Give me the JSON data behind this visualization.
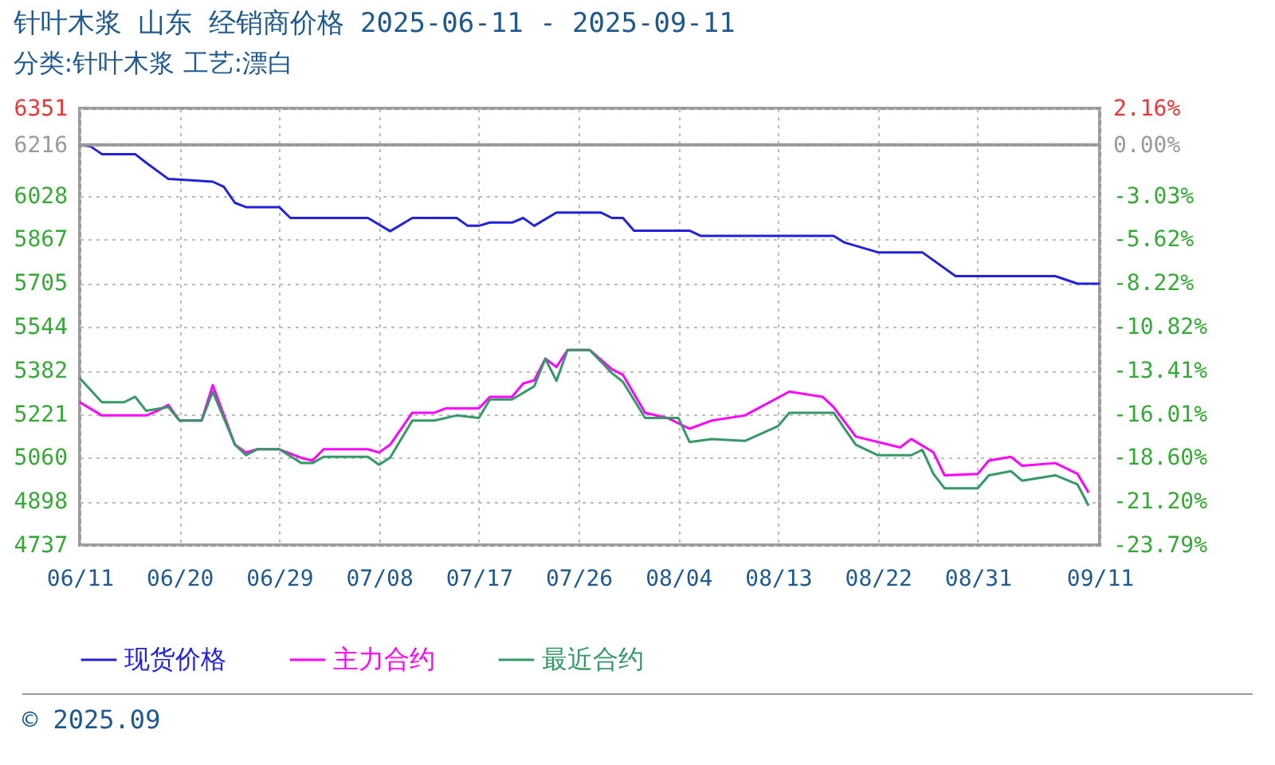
{
  "chart_data": {
    "type": "line",
    "title": "针叶木浆 山东 经销商价格 2025-06-11 - 2025-09-11",
    "subtitle": "分类:针叶木浆 工艺:漂白",
    "xlim": [
      "2025-06-11",
      "2025-09-11"
    ],
    "xticks": [
      {
        "value": "2025-06-11",
        "label": "06/11"
      },
      {
        "value": "2025-06-20",
        "label": "06/20"
      },
      {
        "value": "2025-06-29",
        "label": "06/29"
      },
      {
        "value": "2025-07-08",
        "label": "07/08"
      },
      {
        "value": "2025-07-17",
        "label": "07/17"
      },
      {
        "value": "2025-07-26",
        "label": "07/26"
      },
      {
        "value": "2025-08-04",
        "label": "08/04"
      },
      {
        "value": "2025-08-13",
        "label": "08/13"
      },
      {
        "value": "2025-08-22",
        "label": "08/22"
      },
      {
        "value": "2025-08-31",
        "label": "08/31"
      },
      {
        "value": "2025-09-11",
        "label": "09/11"
      }
    ],
    "ylim": [
      4737,
      6351
    ],
    "yticks": [
      4737,
      4898,
      5060,
      5221,
      5382,
      5544,
      5705,
      5867,
      6028,
      6216,
      6351
    ],
    "y2lim": [
      -23.79,
      2.16
    ],
    "y2ticks": [
      {
        "value": -23.79,
        "label": "-23.79%"
      },
      {
        "value": -21.2,
        "label": "-21.20%"
      },
      {
        "value": -18.6,
        "label": "-18.60%"
      },
      {
        "value": -16.01,
        "label": "-16.01%"
      },
      {
        "value": -13.41,
        "label": "-13.41%"
      },
      {
        "value": -10.82,
        "label": "-10.82%"
      },
      {
        "value": -8.22,
        "label": "-8.22%"
      },
      {
        "value": -5.62,
        "label": "-5.62%"
      },
      {
        "value": -3.03,
        "label": "-3.03%"
      },
      {
        "value": 0,
        "label": "0.00%"
      },
      {
        "value": 2.16,
        "label": "2.16%"
      }
    ],
    "ref_lines": [
      {
        "axis": "y",
        "value": 6216,
        "color": "#999999"
      }
    ],
    "grid": true,
    "legend": "bottom",
    "annotations": [
      "© 2025.09"
    ],
    "series": [
      {
        "name": "现货价格",
        "color": "#2222dd",
        "x": [
          "2025-06-11",
          "2025-06-12",
          "2025-06-13",
          "2025-06-16",
          "2025-06-17",
          "2025-06-19",
          "2025-06-23",
          "2025-06-24",
          "2025-06-25",
          "2025-06-26",
          "2025-06-29",
          "2025-06-30",
          "2025-07-07",
          "2025-07-09",
          "2025-07-11",
          "2025-07-15",
          "2025-07-16",
          "2025-07-17",
          "2025-07-18",
          "2025-07-20",
          "2025-07-21",
          "2025-07-22",
          "2025-07-24",
          "2025-07-28",
          "2025-07-29",
          "2025-07-30",
          "2025-07-31",
          "2025-08-05",
          "2025-08-06",
          "2025-08-18",
          "2025-08-19",
          "2025-08-22",
          "2025-08-26",
          "2025-08-29",
          "2025-09-07",
          "2025-09-09",
          "2025-09-11"
        ],
        "values": [
          6216,
          6210,
          6182,
          6182,
          6150,
          6090,
          6080,
          6061,
          6002,
          5986,
          5986,
          5946,
          5946,
          5897,
          5946,
          5946,
          5917,
          5917,
          5929,
          5929,
          5946,
          5917,
          5966,
          5966,
          5946,
          5946,
          5899,
          5899,
          5880,
          5880,
          5855,
          5819,
          5819,
          5731,
          5731,
          5703,
          5703
        ]
      },
      {
        "name": "主力合约",
        "color": "#ff00ff",
        "x": [
          "2025-06-11",
          "2025-06-13",
          "2025-06-17",
          "2025-06-18",
          "2025-06-19",
          "2025-06-20",
          "2025-06-22",
          "2025-06-23",
          "2025-06-25",
          "2025-06-26",
          "2025-06-27",
          "2025-06-29",
          "2025-07-01",
          "2025-07-02",
          "2025-07-03",
          "2025-07-07",
          "2025-07-08",
          "2025-07-09",
          "2025-07-11",
          "2025-07-13",
          "2025-07-14",
          "2025-07-17",
          "2025-07-18",
          "2025-07-20",
          "2025-07-21",
          "2025-07-22",
          "2025-07-23",
          "2025-07-24",
          "2025-07-25",
          "2025-07-27",
          "2025-07-29",
          "2025-07-30",
          "2025-08-01",
          "2025-08-03",
          "2025-08-05",
          "2025-08-07",
          "2025-08-10",
          "2025-08-14",
          "2025-08-17",
          "2025-08-18",
          "2025-08-20",
          "2025-08-24",
          "2025-08-25",
          "2025-08-27",
          "2025-08-28",
          "2025-08-31",
          "2025-09-01",
          "2025-09-03",
          "2025-09-04",
          "2025-09-07",
          "2025-09-09",
          "2025-09-10"
        ],
        "values": [
          5265,
          5216,
          5216,
          5233,
          5255,
          5197,
          5197,
          5328,
          5108,
          5079,
          5091,
          5091,
          5059,
          5049,
          5091,
          5091,
          5079,
          5108,
          5226,
          5226,
          5242,
          5242,
          5285,
          5285,
          5334,
          5346,
          5426,
          5395,
          5458,
          5458,
          5387,
          5366,
          5226,
          5207,
          5167,
          5197,
          5216,
          5304,
          5285,
          5247,
          5138,
          5098,
          5129,
          5080,
          4995,
          5000,
          5049,
          5063,
          5030,
          5040,
          5000,
          4931
        ]
      },
      {
        "name": "最近合约",
        "color": "#339966",
        "x": [
          "2025-06-11",
          "2025-06-13",
          "2025-06-15",
          "2025-06-16",
          "2025-06-17",
          "2025-06-19",
          "2025-06-20",
          "2025-06-22",
          "2025-06-23",
          "2025-06-25",
          "2025-06-26",
          "2025-06-27",
          "2025-06-29",
          "2025-07-01",
          "2025-07-02",
          "2025-07-03",
          "2025-07-07",
          "2025-07-08",
          "2025-07-09",
          "2025-07-11",
          "2025-07-13",
          "2025-07-15",
          "2025-07-17",
          "2025-07-18",
          "2025-07-20",
          "2025-07-22",
          "2025-07-23",
          "2025-07-24",
          "2025-07-25",
          "2025-07-27",
          "2025-07-29",
          "2025-07-30",
          "2025-08-01",
          "2025-08-04",
          "2025-08-05",
          "2025-08-07",
          "2025-08-10",
          "2025-08-13",
          "2025-08-14",
          "2025-08-18",
          "2025-08-20",
          "2025-08-22",
          "2025-08-25",
          "2025-08-26",
          "2025-08-27",
          "2025-08-28",
          "2025-08-31",
          "2025-09-01",
          "2025-09-03",
          "2025-09-04",
          "2025-09-07",
          "2025-09-09",
          "2025-09-10"
        ],
        "values": [
          5354,
          5265,
          5265,
          5285,
          5233,
          5247,
          5197,
          5197,
          5304,
          5108,
          5069,
          5091,
          5091,
          5040,
          5040,
          5063,
          5063,
          5034,
          5060,
          5197,
          5197,
          5216,
          5207,
          5275,
          5275,
          5324,
          5426,
          5344,
          5458,
          5458,
          5373,
          5340,
          5207,
          5207,
          5118,
          5129,
          5122,
          5177,
          5226,
          5226,
          5108,
          5069,
          5069,
          5089,
          5000,
          4947,
          4947,
          4995,
          5010,
          4975,
          4995,
          4961,
          4883
        ]
      }
    ]
  }
}
